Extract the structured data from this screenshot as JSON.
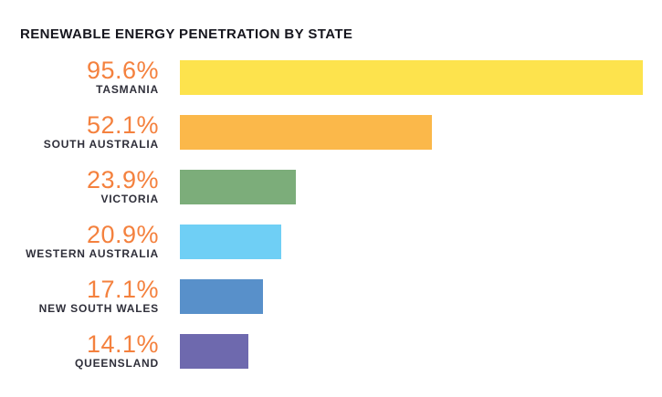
{
  "title": "RENEWABLE ENERGY PENETRATION BY STATE",
  "chart_data": {
    "type": "bar",
    "orientation": "horizontal",
    "title": "RENEWABLE ENERGY PENETRATION BY STATE",
    "xlabel": "",
    "ylabel": "",
    "xlim": [
      0,
      100
    ],
    "grid": false,
    "legend": "none",
    "background": "#ffffff",
    "categories": [
      "TASMANIA",
      "SOUTH AUSTRALIA",
      "VICTORIA",
      "WESTERN AUSTRALIA",
      "NEW SOUTH WALES",
      "QUEENSLAND"
    ],
    "values": [
      95.6,
      52.1,
      23.9,
      20.9,
      17.1,
      14.1
    ],
    "value_labels": [
      "95.6%",
      "52.1%",
      "23.9%",
      "20.9%",
      "17.1%",
      "14.1%"
    ],
    "bar_colors": [
      "#fde34d",
      "#fbb84a",
      "#7cad7a",
      "#6fcff5",
      "#5890ca",
      "#6e69ae"
    ],
    "value_label_color": "#f4813e",
    "category_label_color": "#2f2f3a",
    "title_color": "#16161e"
  }
}
